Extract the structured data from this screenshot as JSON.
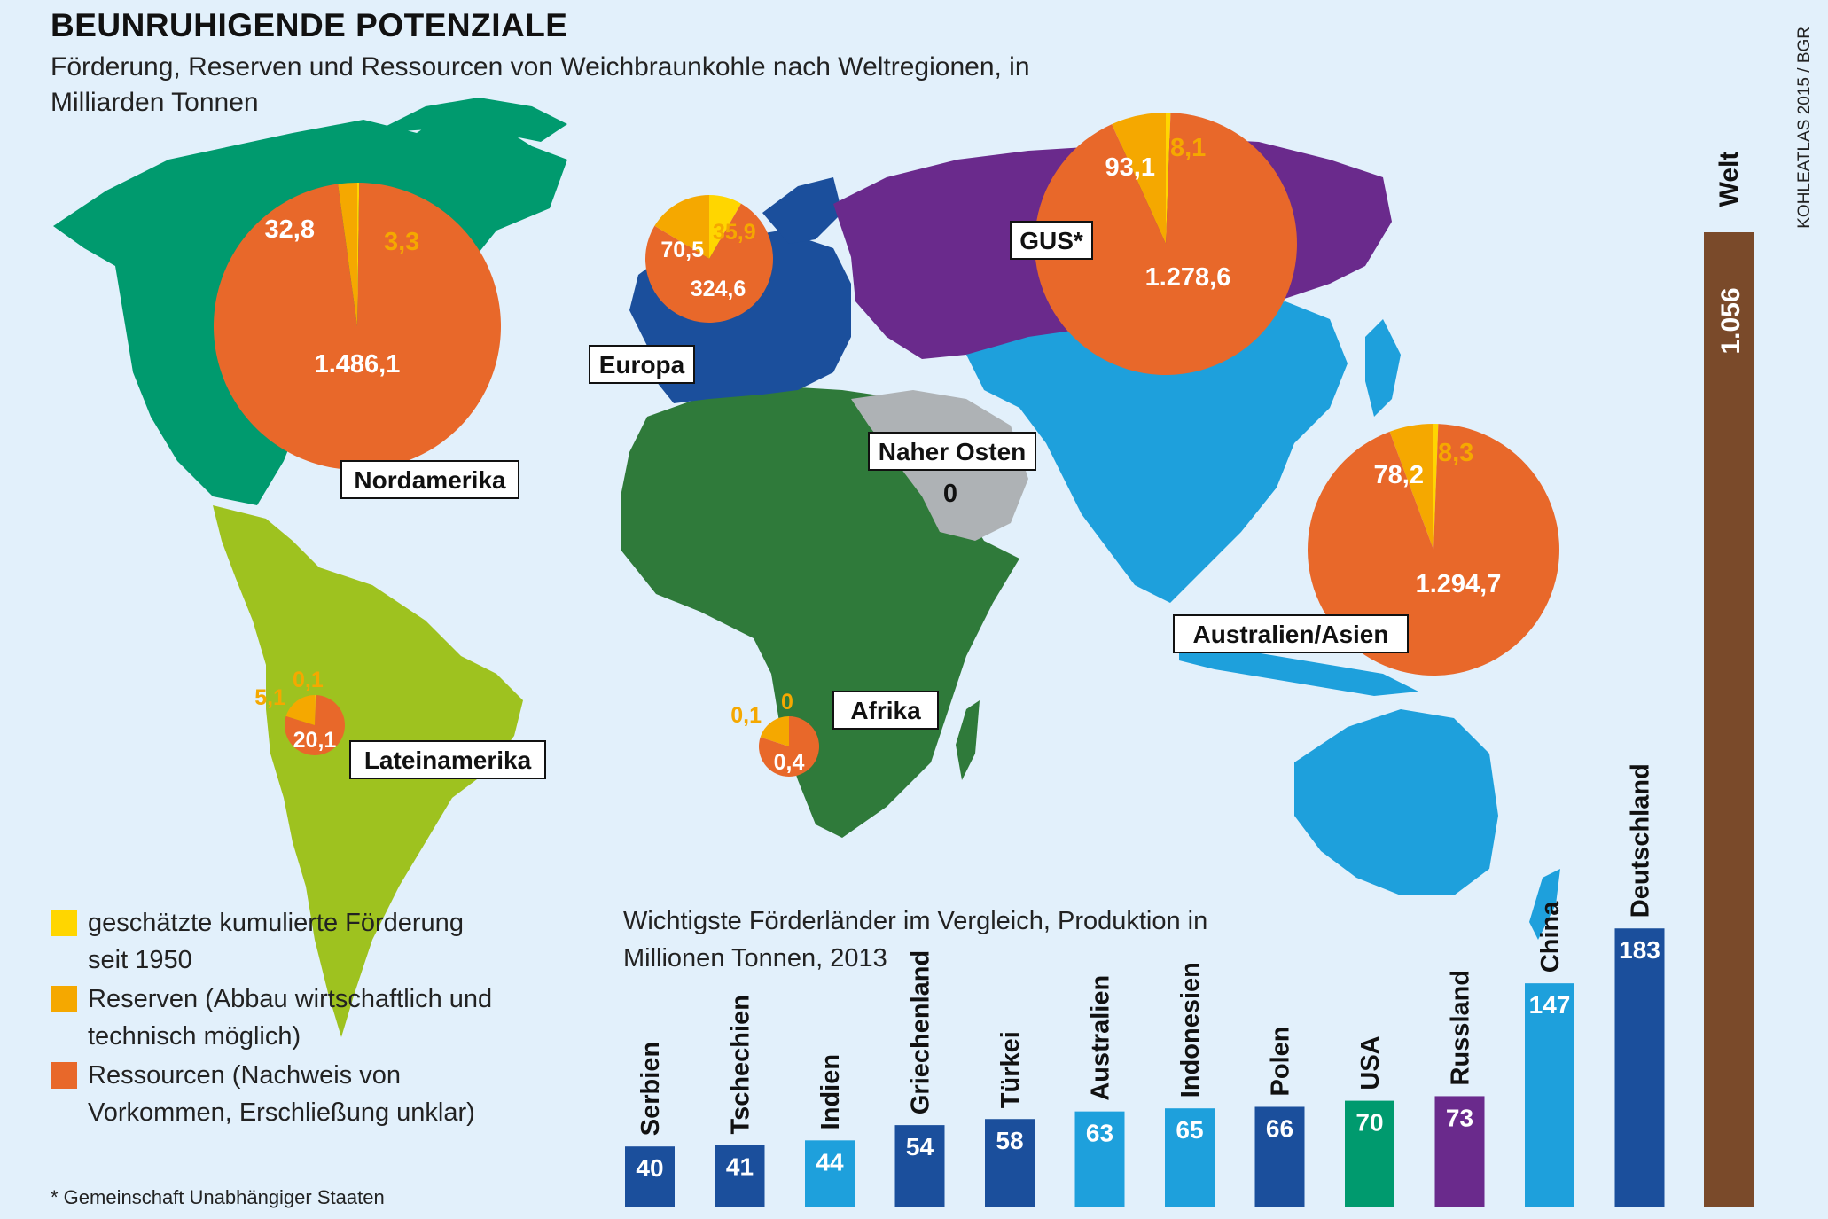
{
  "title": "BEUNRUHIGENDE POTENZIALE",
  "subtitle": "Förderung, Reserven und Ressourcen von Weichbraunkohle nach Weltregionen, in Milliarden Tonnen",
  "source": "KOHLEATLAS 2015 / BGR",
  "legend": [
    {
      "color": "#ffd600",
      "text": "geschätzte kumulierte Förderung seit 1950"
    },
    {
      "color": "#f5a800",
      "text": "Reserven (Abbau wirtschaftlich und technisch möglich)"
    },
    {
      "color": "#e8682a",
      "text": "Ressourcen (Nachweis von Vorkommen, Erschließung unklar)"
    }
  ],
  "footnote": "* Gemeinschaft Unabhängiger Staaten",
  "colors": {
    "foerderung": "#ffd600",
    "reserven": "#f5a800",
    "ressourcen": "#e8682a",
    "nordamerika": "#009a6e",
    "lateinamerika": "#9ec21f",
    "europa": "#1b4f9c",
    "gus": "#6a2a8c",
    "afrika": "#2f7a3a",
    "naher_osten": "#aeb2b5",
    "asien": "#1ea0dc",
    "welt": "#7a4a2a"
  },
  "chart_data": [
    {
      "type": "pie",
      "title": "Förderung, Reserven und Ressourcen von Weichbraunkohle nach Weltregionen",
      "unit": "Milliarden Tonnen",
      "series_labels": [
        "geschätzte kumulierte Förderung seit 1950",
        "Reserven",
        "Ressourcen"
      ],
      "regions": [
        {
          "name": "Nordamerika",
          "foerderung": 3.3,
          "reserven": 32.8,
          "ressourcen": 1486.1,
          "labels": {
            "foerderung": "3,3",
            "reserven": "32,8",
            "ressourcen": "1.486,1"
          }
        },
        {
          "name": "Europa",
          "foerderung": 35.9,
          "reserven": 70.5,
          "ressourcen": 324.6,
          "labels": {
            "foerderung": "35,9",
            "reserven": "70,5",
            "ressourcen": "324,6"
          }
        },
        {
          "name": "GUS*",
          "foerderung": 8.1,
          "reserven": 93.1,
          "ressourcen": 1278.6,
          "labels": {
            "foerderung": "8,1",
            "reserven": "93,1",
            "ressourcen": "1.278,6"
          }
        },
        {
          "name": "Naher Osten",
          "foerderung": 0,
          "reserven": 0,
          "ressourcen": 0,
          "labels": {
            "ressourcen": "0"
          }
        },
        {
          "name": "Australien/Asien",
          "foerderung": 8.3,
          "reserven": 78.2,
          "ressourcen": 1294.7,
          "labels": {
            "foerderung": "8,3",
            "reserven": "78,2",
            "ressourcen": "1.294,7"
          }
        },
        {
          "name": "Lateinamerika",
          "foerderung": 0.1,
          "reserven": 5.1,
          "ressourcen": 20.1,
          "labels": {
            "foerderung": "0,1",
            "reserven": "5,1",
            "ressourcen": "20,1"
          }
        },
        {
          "name": "Afrika",
          "foerderung": 0,
          "reserven": 0.1,
          "ressourcen": 0.4,
          "labels": {
            "foerderung": "0",
            "reserven": "0,1",
            "ressourcen": "0,4"
          }
        }
      ]
    },
    {
      "type": "bar",
      "title": "Wichtigste Förderländer im Vergleich, Produktion in Millionen Tonnen, 2013",
      "categories": [
        "Serbien",
        "Tschechien",
        "Indien",
        "Griechenland",
        "Türkei",
        "Australien",
        "Indonesien",
        "Polen",
        "USA",
        "Russland",
        "China",
        "Deutschland"
      ],
      "values": [
        40,
        41,
        44,
        54,
        58,
        63,
        65,
        66,
        70,
        73,
        147,
        183
      ],
      "bar_colors": [
        "#1b4f9c",
        "#1b4f9c",
        "#1ea0dc",
        "#1b4f9c",
        "#1b4f9c",
        "#1ea0dc",
        "#1ea0dc",
        "#1b4f9c",
        "#009a6e",
        "#6a2a8c",
        "#1ea0dc",
        "#1b4f9c"
      ],
      "total": {
        "label": "Welt",
        "value": 1056,
        "value_label": "1.056"
      }
    }
  ]
}
